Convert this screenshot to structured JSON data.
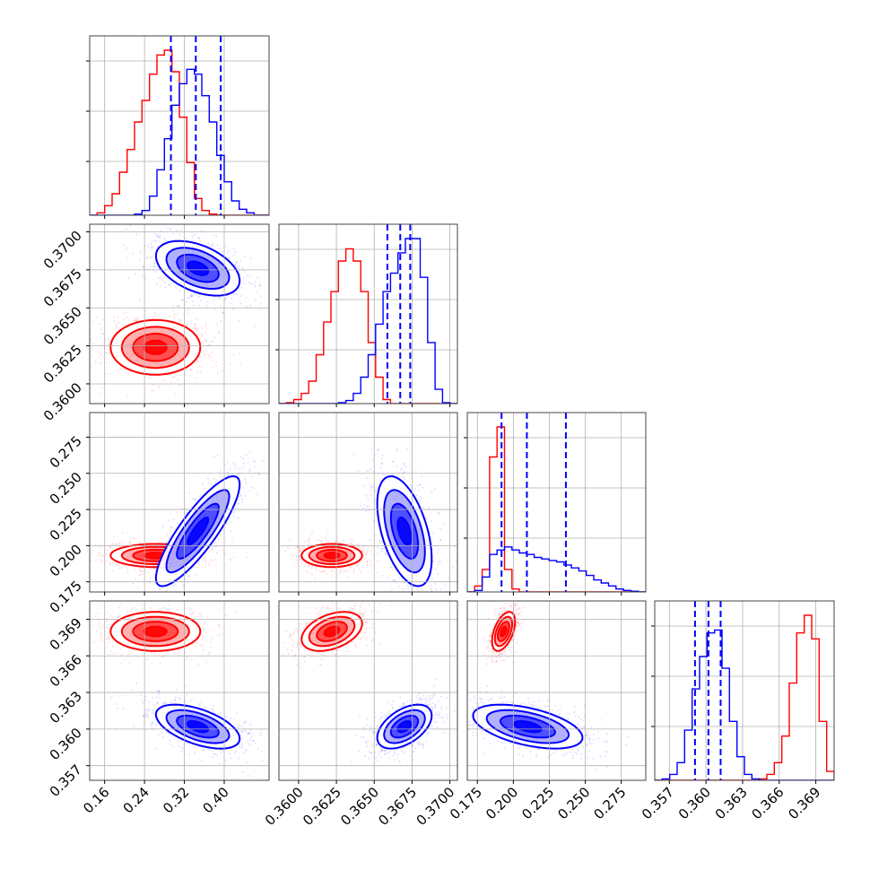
{
  "chart_data": {
    "type": "corner",
    "description_free": true,
    "series": [
      {
        "name": "",
        "color": "#ff0000"
      },
      {
        "name": "",
        "color": "#0000ff"
      }
    ],
    "parameters": [
      {
        "index": 0,
        "range": [
          0.13,
          0.49
        ],
        "ticks": [
          0.16,
          0.24,
          0.32,
          0.4
        ],
        "tick_labels": [
          "0.16",
          "0.24",
          "0.32",
          "0.40"
        ]
      },
      {
        "index": 1,
        "range": [
          0.3587,
          0.3705
        ],
        "ticks": [
          0.36,
          0.3625,
          0.365,
          0.3675,
          0.37
        ],
        "tick_labels": [
          "0.3600",
          "0.3625",
          "0.3650",
          "0.3675",
          "0.3700"
        ]
      },
      {
        "index": 2,
        "range": [
          0.168,
          0.292
        ],
        "ticks": [
          0.175,
          0.2,
          0.225,
          0.25,
          0.275
        ],
        "tick_labels": [
          "0.175",
          "0.200",
          "0.225",
          "0.250",
          "0.275"
        ]
      },
      {
        "index": 3,
        "range": [
          0.3558,
          0.3705
        ],
        "ticks": [
          0.357,
          0.36,
          0.363,
          0.366,
          0.369
        ],
        "tick_labels": [
          "0.357",
          "0.360",
          "0.363",
          "0.366",
          "0.369"
        ]
      }
    ],
    "histograms": [
      {
        "param": 0,
        "red": {
          "x_min": 0.13,
          "x_max": 0.49,
          "counts": [
            0,
            2,
            8,
            18,
            36,
            55,
            78,
            96,
            118,
            134,
            138,
            120,
            82,
            44,
            14,
            4,
            1,
            0,
            0,
            0,
            0,
            0,
            0,
            0
          ]
        },
        "blue": {
          "x_min": 0.13,
          "x_max": 0.49,
          "counts": [
            0,
            0,
            0,
            0,
            0,
            0,
            1,
            4,
            16,
            38,
            64,
            92,
            110,
            122,
            118,
            100,
            78,
            50,
            28,
            12,
            5,
            2,
            0,
            0
          ]
        },
        "quantile_lines": [
          0.293,
          0.343,
          0.393
        ]
      },
      {
        "param": 1,
        "red": {
          "x_min": 0.3587,
          "x_max": 0.3705,
          "counts": [
            0,
            1,
            4,
            10,
            22,
            48,
            80,
            110,
            140,
            152,
            140,
            110,
            60,
            26,
            4,
            0,
            0,
            0,
            0,
            0,
            0,
            0,
            0,
            0
          ]
        },
        "blue": {
          "x_min": 0.3587,
          "x_max": 0.3705,
          "counts": [
            0,
            0,
            0,
            0,
            0,
            0,
            0,
            0,
            1,
            3,
            10,
            26,
            48,
            78,
            110,
            128,
            148,
            162,
            162,
            124,
            60,
            14,
            1,
            0
          ]
        },
        "quantile_lines": [
          0.36587,
          0.36672,
          0.36738
        ]
      },
      {
        "param": 2,
        "red": {
          "x_min": 0.168,
          "x_max": 0.292,
          "counts": [
            0,
            8,
            30,
            180,
            220,
            30,
            4,
            0,
            0,
            0,
            0,
            0,
            0,
            0,
            0,
            0,
            0,
            0,
            0,
            0,
            0,
            0,
            0,
            0
          ]
        },
        "blue": {
          "x_min": 0.168,
          "x_max": 0.292,
          "counts": [
            0,
            2,
            20,
            50,
            56,
            60,
            56,
            52,
            50,
            46,
            44,
            42,
            40,
            36,
            32,
            28,
            22,
            16,
            12,
            8,
            4,
            2,
            1,
            0
          ]
        },
        "quantile_lines": [
          0.1918,
          0.2094,
          0.2365
        ]
      },
      {
        "param": 3,
        "red": {
          "x_min": 0.3558,
          "x_max": 0.3705,
          "counts": [
            0,
            0,
            0,
            0,
            0,
            0,
            0,
            0,
            0,
            0,
            0,
            0,
            0,
            0,
            1,
            4,
            12,
            30,
            66,
            100,
            112,
            96,
            40,
            6
          ]
        },
        "blue": {
          "x_min": 0.3558,
          "x_max": 0.3705,
          "counts": [
            0,
            1,
            4,
            12,
            34,
            62,
            84,
            100,
            102,
            76,
            40,
            16,
            4,
            1,
            0,
            0,
            0,
            0,
            0,
            0,
            0,
            0,
            0,
            0
          ]
        },
        "quantile_lines": [
          0.3591,
          0.3602,
          0.3612
        ]
      }
    ],
    "joints": [
      {
        "x": 0,
        "y": 1,
        "red": {
          "mean": [
            0.262,
            0.3624
          ],
          "sd": [
            0.045,
            0.0009
          ],
          "rho": 0.0
        },
        "blue": {
          "mean": [
            0.347,
            0.3676
          ],
          "sd": [
            0.042,
            0.0009
          ],
          "rho": -0.45
        }
      },
      {
        "x": 0,
        "y": 2,
        "red": {
          "mean": [
            0.262,
            0.1932
          ],
          "sd": [
            0.045,
            0.004
          ],
          "rho": 0.0
        },
        "blue": {
          "mean": [
            0.347,
            0.21
          ],
          "sd": [
            0.042,
            0.019
          ],
          "rho": 0.85
        }
      },
      {
        "x": 1,
        "y": 2,
        "red": {
          "mean": [
            0.3622,
            0.1932
          ],
          "sd": [
            0.001,
            0.004
          ],
          "rho": 0.0
        },
        "blue": {
          "mean": [
            0.367,
            0.21
          ],
          "sd": [
            0.0009,
            0.019
          ],
          "rho": -0.5
        }
      },
      {
        "x": 0,
        "y": 3,
        "red": {
          "mean": [
            0.262,
            0.368
          ],
          "sd": [
            0.045,
            0.0008
          ],
          "rho": 0.0
        },
        "blue": {
          "mean": [
            0.347,
            0.3602
          ],
          "sd": [
            0.042,
            0.0009
          ],
          "rho": -0.55
        }
      },
      {
        "x": 1,
        "y": 3,
        "red": {
          "mean": [
            0.3622,
            0.368
          ],
          "sd": [
            0.001,
            0.0008
          ],
          "rho": 0.4
        },
        "blue": {
          "mean": [
            0.367,
            0.3602
          ],
          "sd": [
            0.0009,
            0.0009
          ],
          "rho": 0.5
        }
      },
      {
        "x": 2,
        "y": 3,
        "red": {
          "mean": [
            0.1932,
            0.368
          ],
          "sd": [
            0.004,
            0.0008
          ],
          "rho": 0.5
        },
        "blue": {
          "mean": [
            0.21,
            0.3602
          ],
          "sd": [
            0.019,
            0.0009
          ],
          "rho": -0.5
        }
      }
    ],
    "grid": true,
    "contour_levels_sigma": [
      0.5,
      1.0,
      1.5,
      2.0
    ]
  }
}
